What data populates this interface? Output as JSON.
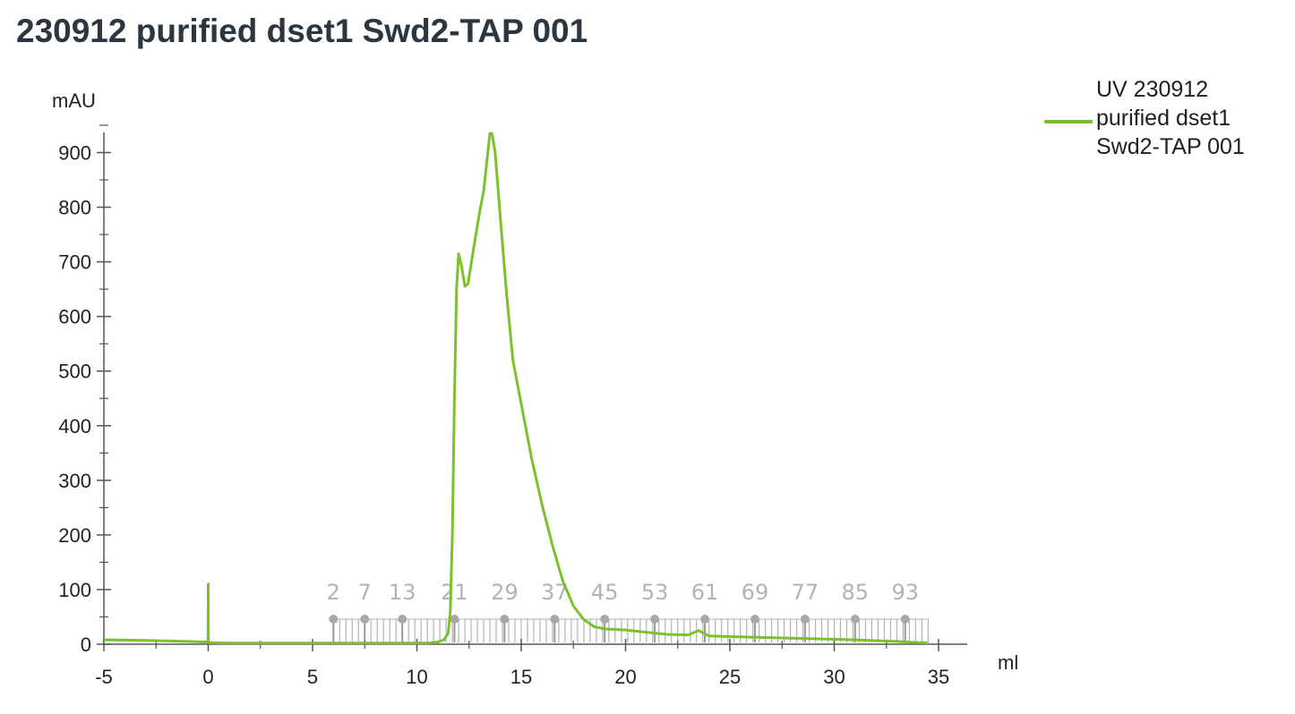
{
  "chart_data": {
    "type": "line",
    "title": "230912 purified dset1 Swd2-TAP 001",
    "xlabel": "ml",
    "ylabel": "mAU",
    "xlim": [
      -5,
      35
    ],
    "ylim": [
      0,
      950
    ],
    "x_ticks": [
      -5,
      0,
      5,
      10,
      15,
      20,
      25,
      30,
      35
    ],
    "y_ticks": [
      0,
      100,
      200,
      300,
      400,
      500,
      600,
      700,
      800,
      900
    ],
    "grid": false,
    "legend_position": "top-right",
    "series": [
      {
        "name": "UV 230912 purified dset1 Swd2-TAP 001",
        "color": "#7cc02e",
        "points": [
          [
            -5,
            8
          ],
          [
            -3,
            7
          ],
          [
            -1,
            5
          ],
          [
            -0.01,
            4
          ],
          [
            0,
            110
          ],
          [
            0.01,
            3
          ],
          [
            1,
            2
          ],
          [
            3,
            2
          ],
          [
            5,
            2
          ],
          [
            7,
            2
          ],
          [
            9,
            2
          ],
          [
            10.5,
            2
          ],
          [
            11,
            4
          ],
          [
            11.3,
            8
          ],
          [
            11.5,
            20
          ],
          [
            11.6,
            60
          ],
          [
            11.7,
            200
          ],
          [
            11.8,
            450
          ],
          [
            11.9,
            650
          ],
          [
            12.0,
            715
          ],
          [
            12.15,
            690
          ],
          [
            12.3,
            655
          ],
          [
            12.45,
            660
          ],
          [
            12.7,
            720
          ],
          [
            13.0,
            790
          ],
          [
            13.2,
            830
          ],
          [
            13.4,
            900
          ],
          [
            13.5,
            935
          ],
          [
            13.6,
            935
          ],
          [
            13.75,
            900
          ],
          [
            14.0,
            780
          ],
          [
            14.3,
            640
          ],
          [
            14.6,
            520
          ],
          [
            15.0,
            440
          ],
          [
            15.5,
            340
          ],
          [
            16.0,
            255
          ],
          [
            16.5,
            180
          ],
          [
            17.0,
            115
          ],
          [
            17.5,
            70
          ],
          [
            18.0,
            45
          ],
          [
            18.5,
            32
          ],
          [
            19.0,
            28
          ],
          [
            20.0,
            26
          ],
          [
            21.0,
            22
          ],
          [
            22.0,
            18
          ],
          [
            23.0,
            17
          ],
          [
            23.5,
            25
          ],
          [
            24.0,
            15
          ],
          [
            25.0,
            14
          ],
          [
            27.0,
            12
          ],
          [
            29.0,
            10
          ],
          [
            31.0,
            8
          ],
          [
            33.0,
            5
          ],
          [
            34.5,
            2
          ]
        ]
      }
    ],
    "fractions": {
      "color": "#b3b3b3",
      "range_ml": [
        6,
        34.5
      ],
      "labeled": [
        {
          "label": "2",
          "ml": 6.0
        },
        {
          "label": "7",
          "ml": 7.5
        },
        {
          "label": "13",
          "ml": 9.3
        },
        {
          "label": "21",
          "ml": 11.8
        },
        {
          "label": "29",
          "ml": 14.2
        },
        {
          "label": "37",
          "ml": 16.6
        },
        {
          "label": "45",
          "ml": 19.0
        },
        {
          "label": "53",
          "ml": 21.4
        },
        {
          "label": "61",
          "ml": 23.8
        },
        {
          "label": "69",
          "ml": 26.2
        },
        {
          "label": "77",
          "ml": 28.6
        },
        {
          "label": "85",
          "ml": 31.0
        },
        {
          "label": "93",
          "ml": 33.4
        }
      ],
      "tick_spacing_ml": 0.3
    }
  }
}
